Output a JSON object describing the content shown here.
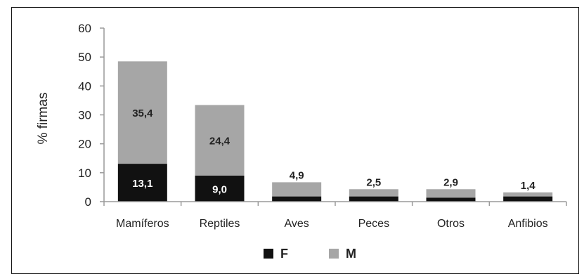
{
  "chart_data": {
    "type": "bar",
    "stacked": true,
    "categories": [
      "Mamíferos",
      "Reptiles",
      "Aves",
      "Peces",
      "Otros",
      "Anfibios"
    ],
    "series": [
      {
        "name": "F",
        "color": "#111111",
        "values": [
          13.1,
          9.0,
          1.8,
          1.8,
          1.4,
          1.8
        ],
        "labels": [
          "13,1",
          "9,0",
          "",
          "",
          "",
          ""
        ]
      },
      {
        "name": "M",
        "color": "#a6a6a6",
        "values": [
          35.4,
          24.4,
          4.9,
          2.5,
          2.9,
          1.4
        ],
        "labels": [
          "35,4",
          "24,4",
          "4,9",
          "2,5",
          "2,9",
          "1,4"
        ]
      }
    ],
    "xlabel": "",
    "ylabel": "% firmas",
    "ylim": [
      0,
      60
    ],
    "yticks": [
      0,
      10,
      20,
      30,
      40,
      50,
      60
    ],
    "grid": false,
    "legend_position": "bottom"
  }
}
